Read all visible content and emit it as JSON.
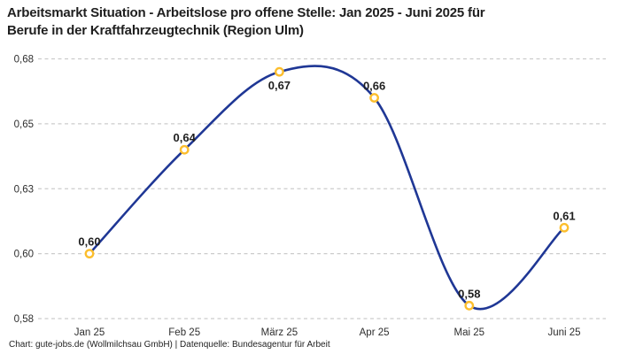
{
  "header": {
    "title_line1": "Arbeitsmarkt Situation - Arbeitslose pro offene Stelle: Jan 2025 - Juni 2025 für",
    "title_line2": "Berufe in der Kraftfahrzeugtechnik (Region Ulm)"
  },
  "footer": {
    "credit": "Chart: gute-jobs.de (Wollmilchsau GmbH) | Datenquelle: Bundesagentur für Arbeit"
  },
  "chart_data": {
    "type": "line",
    "title": "Arbeitsmarkt Situation - Arbeitslose pro offene Stelle: Jan 2025 - Juni 2025 für Berufe in der Kraftfahrzeugtechnik (Region Ulm)",
    "categories": [
      "Jan 25",
      "Feb 25",
      "März 25",
      "Apr 25",
      "Mai 25",
      "Juni 25"
    ],
    "values": [
      0.6,
      0.64,
      0.67,
      0.66,
      0.58,
      0.61
    ],
    "point_labels": [
      "0,60",
      "0,64",
      "0,67",
      "0,66",
      "0,58",
      "0,61"
    ],
    "label_placement": [
      "above",
      "above",
      "below",
      "above",
      "above",
      "above"
    ],
    "y_ticks": [
      {
        "value": 0.675,
        "label": "0,68"
      },
      {
        "value": 0.65,
        "label": "0,65"
      },
      {
        "value": 0.625,
        "label": "0,63"
      },
      {
        "value": 0.6,
        "label": "0,60"
      },
      {
        "value": 0.575,
        "label": "0,58"
      }
    ],
    "ylim": [
      0.575,
      0.675
    ],
    "xlabel": "",
    "ylabel": "",
    "grid": "horizontal-dashed",
    "legend": "none",
    "smooth": true,
    "colors": {
      "line": "#1f3795",
      "marker": "#fcbe2d",
      "grid": "#cccccc",
      "text": "#1f1f1f"
    }
  }
}
